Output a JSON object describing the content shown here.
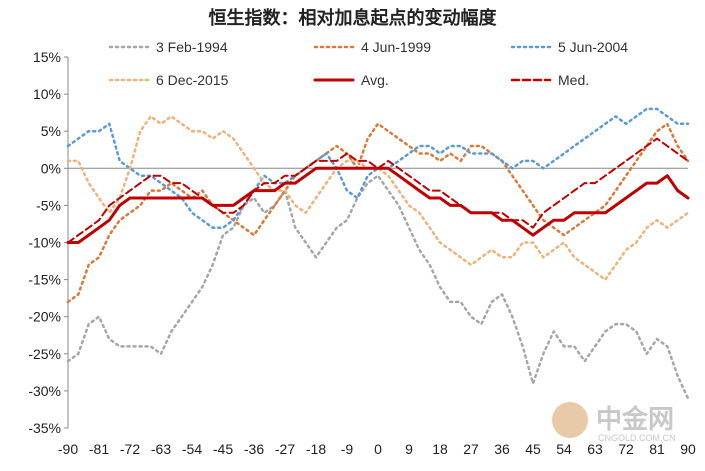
{
  "chart_data": {
    "type": "line",
    "title": "恒生指数：相对加息起点的变动幅度",
    "xlabel": "",
    "ylabel": "",
    "xlim": [
      -90,
      90
    ],
    "ylim": [
      -35,
      15
    ],
    "x_ticks": [
      -90,
      -81,
      -72,
      -63,
      -54,
      -45,
      -36,
      -27,
      -18,
      -9,
      0,
      9,
      18,
      27,
      36,
      45,
      54,
      63,
      72,
      81,
      90
    ],
    "y_ticks": [
      -35,
      -30,
      -25,
      -20,
      -15,
      -10,
      -5,
      0,
      5,
      10,
      15
    ],
    "y_tick_labels": [
      "-35%",
      "-30%",
      "-25%",
      "-20%",
      "-15%",
      "-10%",
      "-5%",
      "0%",
      "5%",
      "10%",
      "15%"
    ],
    "legend_position": "top",
    "x": [
      -90,
      -87,
      -84,
      -81,
      -78,
      -75,
      -72,
      -69,
      -66,
      -63,
      -60,
      -57,
      -54,
      -51,
      -48,
      -45,
      -42,
      -39,
      -36,
      -33,
      -30,
      -27,
      -24,
      -21,
      -18,
      -15,
      -12,
      -9,
      -6,
      -3,
      0,
      3,
      6,
      9,
      12,
      15,
      18,
      21,
      24,
      27,
      30,
      33,
      36,
      39,
      42,
      45,
      48,
      51,
      54,
      57,
      60,
      63,
      66,
      69,
      72,
      75,
      78,
      81,
      84,
      87,
      90
    ],
    "series": [
      {
        "name": "3 Feb-1994",
        "color": "#a6a6a6",
        "style": "dotted",
        "values": [
          -26,
          -25,
          -21,
          -20,
          -23,
          -24,
          -24,
          -24,
          -24,
          -25,
          -22,
          -20,
          -18,
          -16,
          -13,
          -9,
          -8,
          -5,
          -4,
          -6,
          -5,
          -3,
          -8,
          -10,
          -12,
          -10,
          -8,
          -7,
          -4,
          -2,
          -1,
          -3,
          -5,
          -8,
          -11,
          -13,
          -16,
          -18,
          -18,
          -20,
          -21,
          -18,
          -17,
          -20,
          -24,
          -29,
          -25,
          -22,
          -24,
          -24,
          -26,
          -24,
          -22,
          -21,
          -21,
          -22,
          -25,
          -23,
          -24,
          -28,
          -31
        ]
      },
      {
        "name": "4 Jun-1999",
        "color": "#d97a3a",
        "style": "dotted",
        "values": [
          -18,
          -17,
          -13,
          -12,
          -9,
          -7,
          -6,
          -5,
          -3,
          -3,
          -2,
          -3,
          -4,
          -3,
          -5,
          -6,
          -7,
          -8,
          -9,
          -7,
          -5,
          -3,
          -1,
          0,
          1,
          2,
          3,
          2,
          0,
          4,
          6,
          5,
          4,
          3,
          2,
          2,
          1,
          2,
          1,
          3,
          3,
          2,
          1,
          -1,
          -3,
          -5,
          -7,
          -8,
          -9,
          -8,
          -7,
          -6,
          -5,
          -3,
          -1,
          1,
          3,
          5,
          6,
          3,
          1
        ]
      },
      {
        "name": "5 Jun-2004",
        "color": "#5b9bd5",
        "style": "dotted",
        "values": [
          3,
          4,
          5,
          5,
          6,
          1,
          0,
          -1,
          -1,
          -2,
          -3,
          -4,
          -6,
          -7,
          -8,
          -8,
          -7,
          -5,
          -3,
          -1,
          -2,
          -2,
          -1,
          0,
          1,
          2,
          0,
          -3,
          -4,
          -1,
          0,
          0,
          1,
          2,
          3,
          3,
          2,
          3,
          3,
          2,
          2,
          2,
          1,
          0,
          1,
          1,
          0,
          1,
          2,
          3,
          4,
          5,
          6,
          7,
          6,
          7,
          8,
          8,
          7,
          6,
          6
        ]
      },
      {
        "name": "6 Dec-2015",
        "color": "#f0b27a",
        "style": "dotted",
        "values": [
          1,
          1,
          -2,
          -4,
          -6,
          -4,
          0,
          5,
          7,
          6,
          7,
          6,
          5,
          5,
          4,
          5,
          4,
          2,
          0,
          -2,
          -3,
          -3,
          -5,
          -6,
          -4,
          -2,
          0,
          1,
          1,
          0,
          0,
          -1,
          -3,
          -5,
          -6,
          -8,
          -10,
          -11,
          -12,
          -13,
          -12,
          -11,
          -12,
          -12,
          -10,
          -10,
          -12,
          -11,
          -10,
          -12,
          -13,
          -14,
          -15,
          -13,
          -11,
          -10,
          -8,
          -7,
          -8,
          -7,
          -6
        ]
      },
      {
        "name": "Avg.",
        "color": "#c00000",
        "style": "solid",
        "values": [
          -10,
          -10,
          -9,
          -8,
          -7,
          -5,
          -4,
          -4,
          -4,
          -4,
          -4,
          -4,
          -4,
          -4,
          -5,
          -5,
          -5,
          -4,
          -3,
          -3,
          -3,
          -2,
          -2,
          -1,
          0,
          0,
          0,
          0,
          0,
          0,
          0,
          0,
          -1,
          -2,
          -3,
          -4,
          -4,
          -5,
          -5,
          -6,
          -6,
          -6,
          -7,
          -7,
          -8,
          -9,
          -8,
          -7,
          -7,
          -6,
          -6,
          -6,
          -6,
          -5,
          -4,
          -3,
          -2,
          -2,
          -1,
          -3,
          -4
        ]
      },
      {
        "name": "Med.",
        "color": "#c00000",
        "style": "dashed",
        "values": [
          -10,
          -9,
          -8,
          -7,
          -5,
          -4,
          -3,
          -2,
          -1,
          -1,
          -2,
          -2,
          -3,
          -4,
          -5,
          -6,
          -6,
          -5,
          -3,
          -2,
          -2,
          -1,
          -1,
          0,
          1,
          1,
          1,
          2,
          1,
          1,
          0,
          1,
          0,
          -1,
          -2,
          -3,
          -3,
          -4,
          -5,
          -6,
          -6,
          -6,
          -6,
          -7,
          -7,
          -8,
          -6,
          -5,
          -4,
          -3,
          -2,
          -2,
          -1,
          0,
          1,
          2,
          3,
          4,
          3,
          2,
          1
        ]
      }
    ]
  },
  "watermark": {
    "brand": "中金网",
    "domain": "CNGOLD.COM.CN"
  }
}
